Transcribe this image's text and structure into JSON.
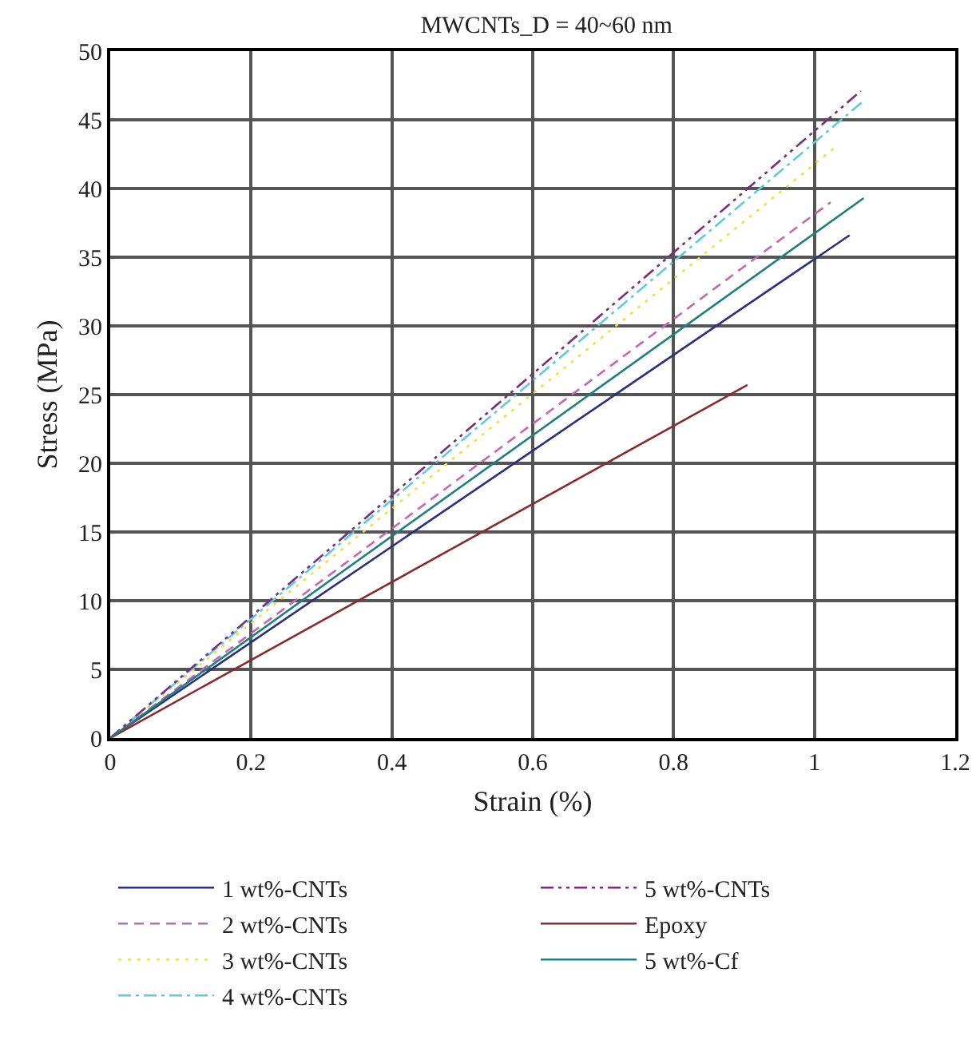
{
  "chart_data": {
    "type": "line",
    "title": "MWCNTs_D = 40~60 nm",
    "xlabel": "Strain (%)",
    "ylabel": "Stress (MPa)",
    "xlim": [
      0,
      1.2
    ],
    "xticks": [
      0,
      0.2,
      0.4,
      0.6,
      0.8,
      1,
      1.2
    ],
    "ylim": [
      0,
      50
    ],
    "yticks": [
      0,
      5,
      10,
      15,
      20,
      25,
      30,
      35,
      40,
      45,
      50
    ],
    "grid": true,
    "legend": "bottom",
    "marker": "none",
    "series": [
      {
        "name": "1 wt%-CNTs",
        "color": "#2b2f7f",
        "line_style": "solid",
        "x": [
          0,
          1.05
        ],
        "values": [
          0,
          36.6
        ]
      },
      {
        "name": "2 wt%-CNTs",
        "color": "#c864b4",
        "line_style": "dashed",
        "x": [
          0,
          1.023
        ],
        "values": [
          0,
          39.0
        ]
      },
      {
        "name": "3 wt%-CNTs",
        "color": "#f0e040",
        "line_style": "dotted",
        "x": [
          0,
          1.027
        ],
        "values": [
          0,
          42.9
        ]
      },
      {
        "name": "4 wt%-CNTs",
        "color": "#5ccbe0",
        "line_style": "dashdot",
        "x": [
          0,
          1.068
        ],
        "values": [
          0,
          46.3
        ]
      },
      {
        "name": "5 wt%-CNTs",
        "color": "#7a2a82",
        "line_style": "dashdotdot",
        "x": [
          0,
          1.066
        ],
        "values": [
          0,
          47.1
        ]
      },
      {
        "name": "Epoxy",
        "color": "#8b2a2a",
        "line_style": "solid",
        "x": [
          0,
          0.905
        ],
        "values": [
          0,
          25.7
        ]
      },
      {
        "name": "5 wt%-Cf",
        "color": "#1f8080",
        "line_style": "solid",
        "x": [
          0,
          1.07
        ],
        "values": [
          0,
          39.3
        ]
      }
    ]
  }
}
